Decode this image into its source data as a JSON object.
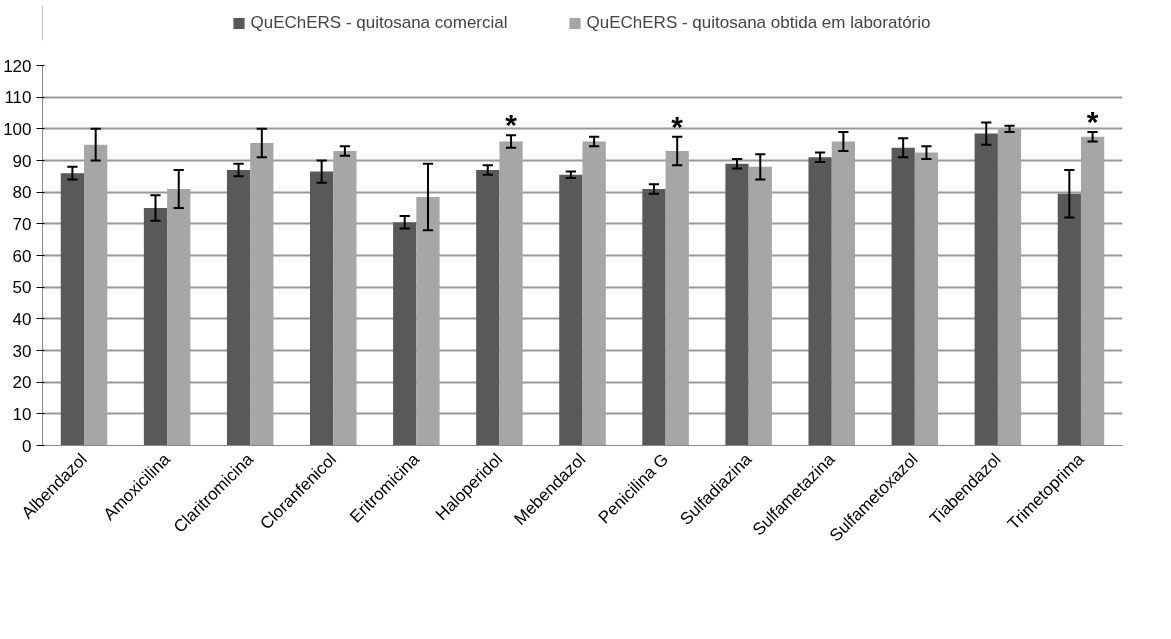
{
  "chart_data": {
    "type": "bar",
    "categories": [
      "Albendazol",
      "Amoxicilina",
      "Claritromicina",
      "Cloranfenicol",
      "Eritromicina",
      "Haloperidol",
      "Mebendazol",
      "Penicilina G",
      "Sulfadiazina",
      "Sulfametazina",
      "Sulfametoxazol",
      "Tiabendazol",
      "Trimetoprima"
    ],
    "series": [
      {
        "name": "QuEChERS - quitosana comercial",
        "color": "#595959",
        "values": [
          86,
          75,
          87,
          86.5,
          70.5,
          87,
          85.5,
          81,
          89,
          91,
          94,
          98.5,
          79.5
        ],
        "errors": [
          2,
          4,
          2,
          3.5,
          2,
          1.5,
          1,
          1.5,
          1.5,
          1.5,
          3,
          3.5,
          7.5
        ]
      },
      {
        "name": "QuEChERS - quitosana obtida em laboratório",
        "color": "#a6a6a6",
        "values": [
          95,
          81,
          95.5,
          93,
          78.5,
          96,
          96,
          93,
          88,
          96,
          92.5,
          100,
          97.5
        ],
        "errors": [
          5,
          6,
          4.5,
          1.5,
          10.5,
          2,
          1.5,
          4.5,
          4,
          3,
          2,
          1,
          1.5
        ]
      }
    ],
    "ylim": [
      0,
      120
    ],
    "yticks": [
      0,
      10,
      20,
      30,
      40,
      50,
      60,
      70,
      80,
      90,
      100,
      110,
      120
    ],
    "grid": "y",
    "legend": "top",
    "annotations": [
      {
        "text": "*",
        "x": "Haloperidol",
        "y": 96
      },
      {
        "text": "*",
        "x": "Penicilina G",
        "y": 93
      },
      {
        "text": "*",
        "x": "Trimetoprima",
        "y": 97.5
      }
    ]
  }
}
